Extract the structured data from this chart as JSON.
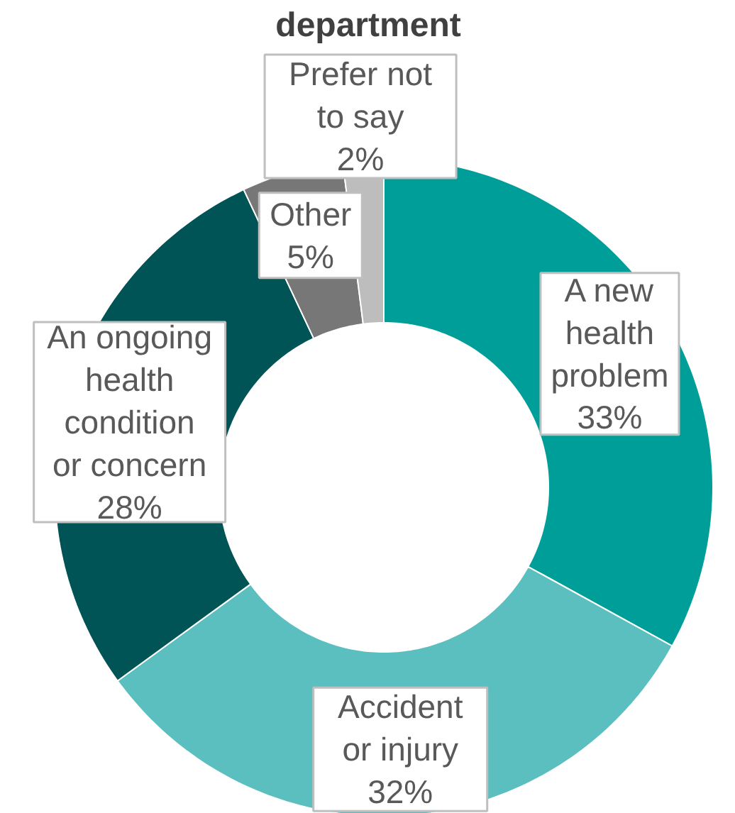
{
  "chart_data": {
    "type": "donut",
    "title": "department",
    "categories": [
      "A new health problem",
      "Accident or injury",
      "An ongoing health condition or concern",
      "Other",
      "Prefer not to say"
    ],
    "values": [
      33,
      32,
      28,
      5,
      2
    ],
    "value_labels": [
      "33%",
      "32%",
      "28%",
      "5%",
      "2%"
    ],
    "colors": [
      "#009e99",
      "#5bbfbf",
      "#005456",
      "#777777",
      "#bdbdbd"
    ]
  }
}
